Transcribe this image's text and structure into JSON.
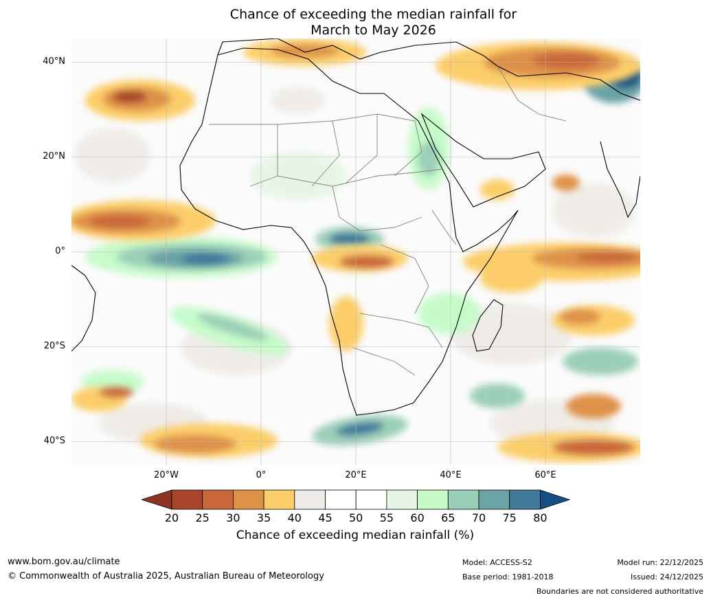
{
  "title": {
    "line1": "Chance of exceeding the median rainfall for",
    "line2": "March to May 2026"
  },
  "map": {
    "lat_labels": [
      "40°N",
      "20°N",
      "0°",
      "20°S",
      "40°S"
    ],
    "lon_labels": [
      "20°W",
      "0°",
      "20°E",
      "40°E",
      "60°E"
    ],
    "extent": {
      "lon_min": -40,
      "lon_max": 80,
      "lat_min": -45,
      "lat_max": 45
    }
  },
  "colorbar": {
    "ticks": [
      "20",
      "25",
      "30",
      "35",
      "40",
      "45",
      "50",
      "55",
      "60",
      "65",
      "70",
      "75",
      "80"
    ],
    "colors": [
      "#a9452a",
      "#c9673a",
      "#de9248",
      "#fcce6a",
      "#eeebe7",
      "#ffffff",
      "#ffffff",
      "#e7f5e6",
      "#c6fbc9",
      "#9bcfb8",
      "#6ba3a6",
      "#417a9b"
    ],
    "under_color": "#8c3323",
    "over_color": "#124f85",
    "label": "Chance of exceeding median rainfall (%)"
  },
  "footer": {
    "website": "www.bom.gov.au/climate",
    "copyright": "© Commonwealth of Australia 2025, Australian Bureau of Meteorology",
    "model": "Model: ACCESS-S2",
    "base_period": "Base period: 1981-2018",
    "model_run": "Model run: 22/12/2025",
    "issued": "Issued: 24/12/2025",
    "disclaimer": "Boundaries are not considered authoritative"
  }
}
